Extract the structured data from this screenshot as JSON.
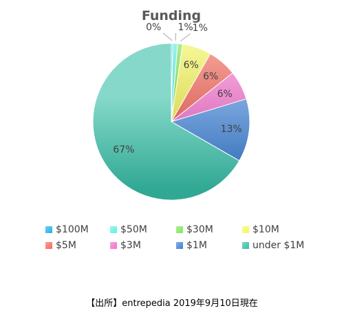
{
  "chart_data": {
    "type": "pie",
    "title": "Funding",
    "categories": [
      "$100M",
      "$50M",
      "$30M",
      "$10M",
      "$5M",
      "$3M",
      "$1M",
      "under $1M"
    ],
    "values": [
      0.3,
      1,
      1,
      6,
      6,
      6,
      13,
      66.7
    ],
    "data_labels": [
      "0%",
      "1%",
      "1%",
      "6%",
      "6%",
      "6%",
      "13%",
      "67%"
    ],
    "colors": [
      "#1fb3e8",
      "#5ff2e6",
      "#7fe85a",
      "#f7f760",
      "#f36a5e",
      "#f472cc",
      "#3f82d6",
      "#36bfa7"
    ],
    "legend_position": "bottom"
  },
  "source_note": "【出所】entrepedia 2019年9月10日現在"
}
